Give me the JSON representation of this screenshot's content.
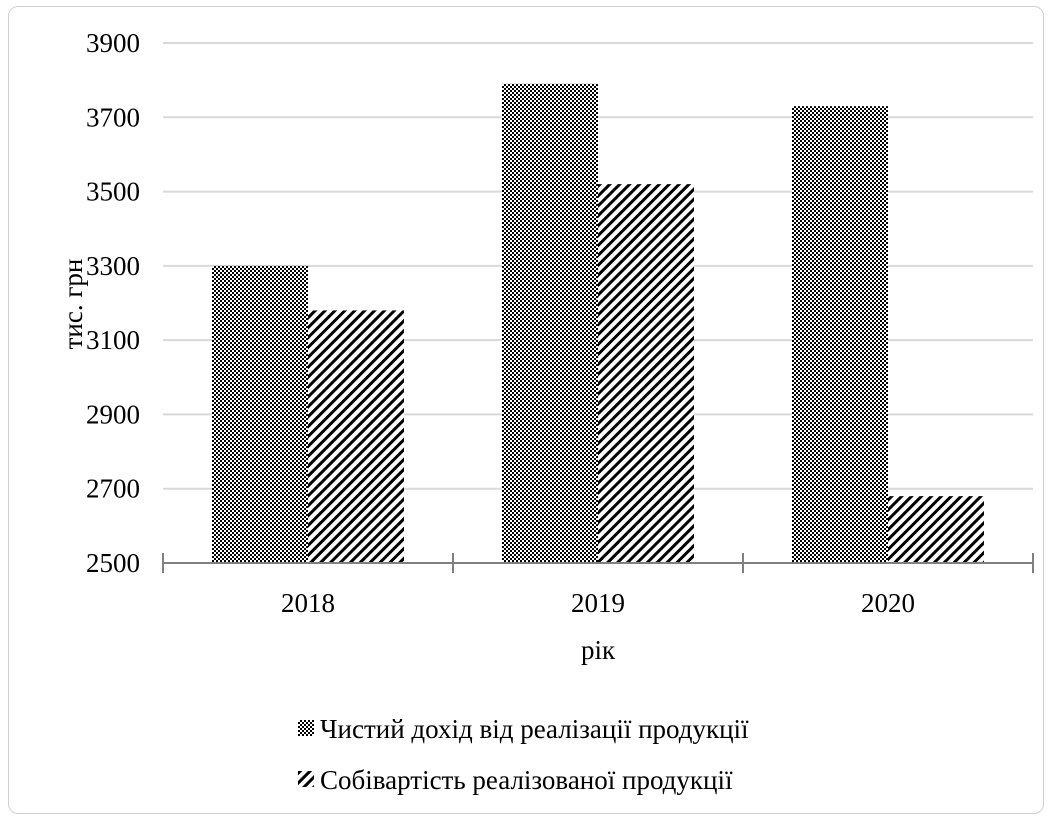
{
  "chart_data": {
    "type": "bar",
    "categories": [
      "2018",
      "2019",
      "2020"
    ],
    "series": [
      {
        "name": "Чистий дохід від реалізації продукції",
        "values": [
          3300,
          3790,
          3730
        ],
        "pattern": "checker"
      },
      {
        "name": "Собівартість реалізованої продукції",
        "values": [
          3180,
          3520,
          2680
        ],
        "pattern": "diagonal"
      }
    ],
    "title": "",
    "xlabel": "рік",
    "ylabel": "тис. грн",
    "ylim": [
      2500,
      3900
    ],
    "yticks": [
      2500,
      2700,
      2900,
      3100,
      3300,
      3500,
      3700,
      3900
    ],
    "grid": true,
    "legend_position": "bottom"
  },
  "colors": {
    "bar": "#000000",
    "grid": "#d9d9d9",
    "axis": "#808080"
  }
}
